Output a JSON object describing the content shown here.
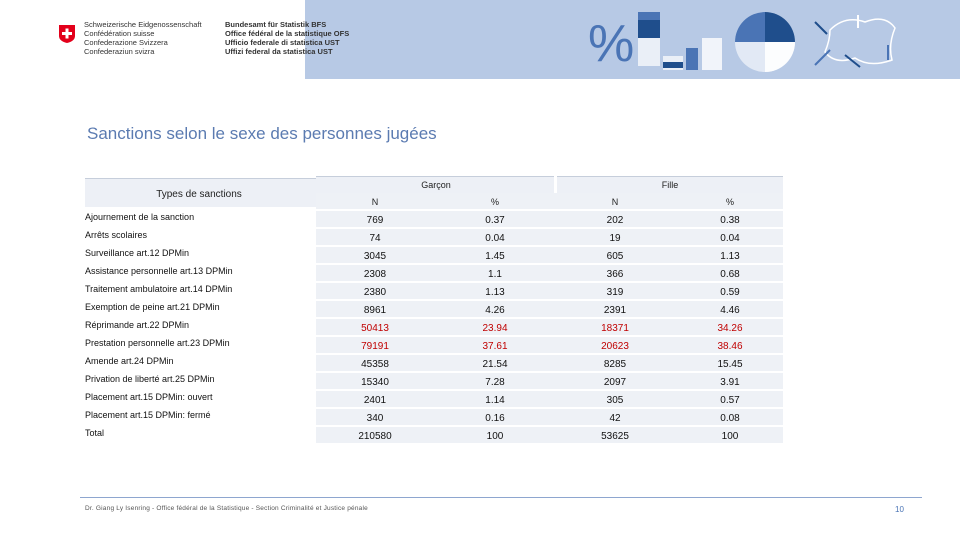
{
  "header": {
    "confederation": [
      "Schweizerische Eidgenossenschaft",
      "Confédération suisse",
      "Confederazione Svizzera",
      "Confederaziun svizra"
    ],
    "office": [
      "Bundesamt für Statistik BFS",
      "Office fédéral de la statistique OFS",
      "Ufficio federale di statistica UST",
      "Uffizi federal da statistica UST"
    ],
    "percent_glyph": "%"
  },
  "title": "Sanctions selon le sexe des personnes jugées",
  "table": {
    "row_header": "Types de sanctions",
    "group_headers": [
      "Garçon",
      "Fille"
    ],
    "sub_headers": [
      "N",
      "%",
      "N",
      "%"
    ],
    "rows": [
      {
        "label": "Ajournement de la sanction",
        "values": [
          "769",
          "0.37",
          "202",
          "0.38"
        ]
      },
      {
        "label": "Arrêts scolaires",
        "values": [
          "74",
          "0.04",
          "19",
          "0.04"
        ]
      },
      {
        "label": "Surveillance art.12 DPMin",
        "values": [
          "3045",
          "1.45",
          "605",
          "1.13"
        ]
      },
      {
        "label": "Assistance personnelle art.13 DPMin",
        "values": [
          "2308",
          "1.1",
          "366",
          "0.68"
        ]
      },
      {
        "label": "Traitement ambulatoire art.14 DPMin",
        "values": [
          "2380",
          "1.13",
          "319",
          "0.59"
        ]
      },
      {
        "label": "Exemption de peine art.21 DPMin",
        "values": [
          "8961",
          "4.26",
          "2391",
          "4.46"
        ]
      },
      {
        "label": "Réprimande art.22 DPMin",
        "values": [
          "50413",
          "23.94",
          "18371",
          "34.26"
        ],
        "highlight": true
      },
      {
        "label": "Prestation personnelle art.23 DPMin",
        "values": [
          "79191",
          "37.61",
          "20623",
          "38.46"
        ],
        "highlight": true
      },
      {
        "label": "Amende art.24 DPMin",
        "values": [
          "45358",
          "21.54",
          "8285",
          "15.45"
        ]
      },
      {
        "label": "Privation de liberté art.25 DPMin",
        "values": [
          "15340",
          "7.28",
          "2097",
          "3.91"
        ]
      },
      {
        "label": "Placement art.15 DPMin: ouvert",
        "values": [
          "2401",
          "1.14",
          "305",
          "0.57"
        ]
      },
      {
        "label": "Placement art.15 DPMin: fermé",
        "values": [
          "340",
          "0.16",
          "42",
          "0.08"
        ]
      },
      {
        "label": "Total",
        "values": [
          "210580",
          "100",
          "53625",
          "100"
        ]
      }
    ]
  },
  "footer": {
    "text": "Dr. Giang Ly Isenring - Office fédéral de la Statistique - Section Criminalité et Justice pénale",
    "page": "10"
  },
  "colors": {
    "highlight": "#c00000",
    "title": "#5b7bb1",
    "header_band": "#b7c9e5"
  }
}
